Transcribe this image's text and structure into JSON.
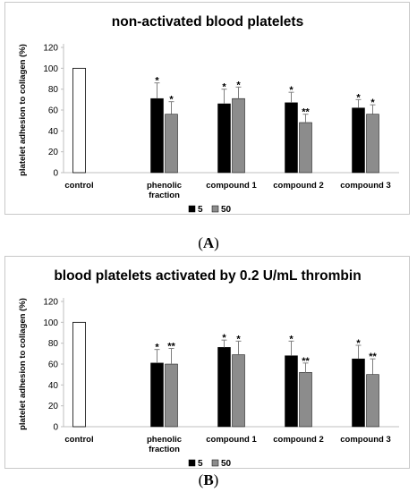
{
  "captions": [
    "(A)",
    "(B)"
  ],
  "caption_parts": [
    {
      "open": "(",
      "letter": "A",
      "close": ")"
    },
    {
      "open": "(",
      "letter": "B",
      "close": ")"
    }
  ],
  "chart_data": [
    {
      "type": "bar",
      "title": "non-activated blood platelets",
      "ylabel": "platelet adhesion to collagen (%)",
      "ylim": [
        0,
        120
      ],
      "yticks": [
        0,
        20,
        40,
        60,
        80,
        100,
        120
      ],
      "categories": [
        "control",
        "phenolic fraction",
        "compound 1",
        "compound 2",
        "compound 3"
      ],
      "category_lines": [
        [
          "control"
        ],
        [
          "phenolic",
          "fraction"
        ],
        [
          "compound 1"
        ],
        [
          "compound 2"
        ],
        [
          "compound 3"
        ]
      ],
      "control": {
        "value": 100,
        "color": "#ffffff"
      },
      "legend_position": "bottom-right",
      "series": [
        {
          "name": "5",
          "color": "#000000",
          "values": [
            null,
            71,
            66,
            67,
            62
          ],
          "errors": [
            null,
            15,
            14,
            10,
            8
          ],
          "significance": [
            "",
            "*",
            "*",
            "*",
            "*"
          ]
        },
        {
          "name": "50",
          "color": "#8c8c8c",
          "values": [
            null,
            56,
            71,
            48,
            56
          ],
          "errors": [
            null,
            12,
            11,
            8,
            9
          ],
          "significance": [
            "",
            "*",
            "*",
            "**",
            "*"
          ]
        }
      ]
    },
    {
      "type": "bar",
      "title": "blood platelets activated by 0.2 U/mL thrombin",
      "ylabel": "platelet adhesion to collagen (%)",
      "ylim": [
        0,
        120
      ],
      "yticks": [
        0,
        20,
        40,
        60,
        80,
        100,
        120
      ],
      "categories": [
        "control",
        "phenolic fraction",
        "compound 1",
        "compound 2",
        "compound 3"
      ],
      "category_lines": [
        [
          "control"
        ],
        [
          "phenolic",
          "fraction"
        ],
        [
          "compound 1"
        ],
        [
          "compound 2"
        ],
        [
          "compound 3"
        ]
      ],
      "control": {
        "value": 100,
        "color": "#ffffff"
      },
      "legend_position": "bottom-right",
      "series": [
        {
          "name": "5",
          "color": "#000000",
          "values": [
            null,
            61,
            76,
            68,
            65
          ],
          "errors": [
            null,
            13,
            7,
            14,
            13
          ],
          "significance": [
            "",
            "*",
            "*",
            "*",
            "*"
          ]
        },
        {
          "name": "50",
          "color": "#8c8c8c",
          "values": [
            null,
            60,
            69,
            52,
            50
          ],
          "errors": [
            null,
            15,
            13,
            9,
            15
          ],
          "significance": [
            "",
            "**",
            "*",
            "**",
            "**"
          ]
        }
      ]
    }
  ]
}
